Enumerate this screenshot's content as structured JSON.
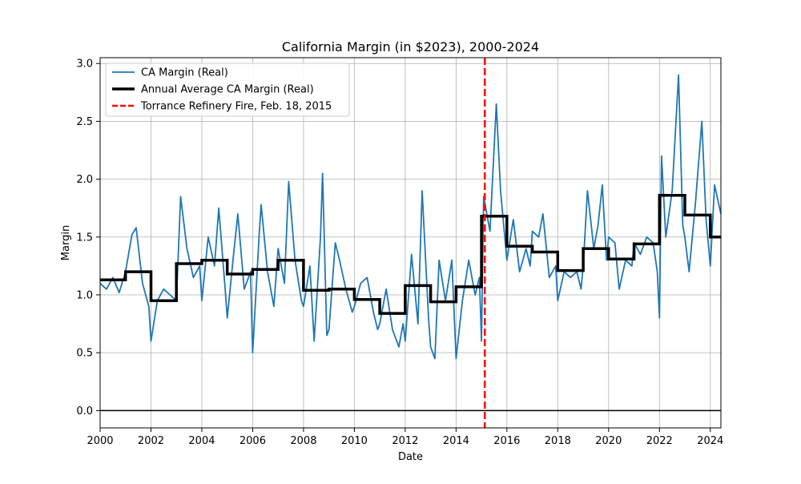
{
  "chart_data": {
    "type": "line",
    "title": "California Margin (in $2023), 2000-2024",
    "xlabel": "Date",
    "ylabel": "Margin",
    "xlim": [
      "2000-01-01",
      "2024-06-01"
    ],
    "ylim": [
      -0.15,
      3.05
    ],
    "x_ticks": [
      "2000",
      "2002",
      "2004",
      "2006",
      "2008",
      "2010",
      "2012",
      "2014",
      "2016",
      "2018",
      "2020",
      "2022",
      "2024"
    ],
    "y_ticks": [
      "0.0",
      "0.5",
      "1.0",
      "1.5",
      "2.0",
      "2.5",
      "3.0"
    ],
    "grid": true,
    "legend_position": "upper-left",
    "zero_line": 0.0,
    "series": [
      {
        "name": "CA Margin (Real)",
        "color": "#1f77b4",
        "style": "line",
        "points": [
          [
            "2000-01-01",
            1.1
          ],
          [
            "2000-04-01",
            1.05
          ],
          [
            "2000-07-01",
            1.15
          ],
          [
            "2000-10-01",
            1.02
          ],
          [
            "2001-01-01",
            1.2
          ],
          [
            "2001-04-01",
            1.52
          ],
          [
            "2001-06-01",
            1.58
          ],
          [
            "2001-09-01",
            1.1
          ],
          [
            "2001-12-01",
            0.9
          ],
          [
            "2002-01-01",
            0.6
          ],
          [
            "2002-04-01",
            0.95
          ],
          [
            "2002-07-01",
            1.05
          ],
          [
            "2002-10-01",
            1.0
          ],
          [
            "2003-01-01",
            0.95
          ],
          [
            "2003-03-01",
            1.85
          ],
          [
            "2003-06-01",
            1.4
          ],
          [
            "2003-09-01",
            1.15
          ],
          [
            "2003-12-01",
            1.25
          ],
          [
            "2004-01-01",
            0.95
          ],
          [
            "2004-04-01",
            1.5
          ],
          [
            "2004-07-01",
            1.25
          ],
          [
            "2004-09-01",
            1.75
          ],
          [
            "2004-12-01",
            1.05
          ],
          [
            "2005-01-01",
            0.8
          ],
          [
            "2005-04-01",
            1.35
          ],
          [
            "2005-06-01",
            1.7
          ],
          [
            "2005-09-01",
            1.05
          ],
          [
            "2005-12-01",
            1.2
          ],
          [
            "2006-01-01",
            0.5
          ],
          [
            "2006-04-01",
            1.5
          ],
          [
            "2006-05-01",
            1.78
          ],
          [
            "2006-08-01",
            1.2
          ],
          [
            "2006-11-01",
            0.9
          ],
          [
            "2007-01-01",
            1.4
          ],
          [
            "2007-04-01",
            1.1
          ],
          [
            "2007-06-01",
            1.98
          ],
          [
            "2007-09-01",
            1.3
          ],
          [
            "2007-12-01",
            0.95
          ],
          [
            "2008-01-01",
            0.9
          ],
          [
            "2008-04-01",
            1.25
          ],
          [
            "2008-06-01",
            0.6
          ],
          [
            "2008-09-01",
            1.5
          ],
          [
            "2008-10-01",
            2.05
          ],
          [
            "2008-12-01",
            0.65
          ],
          [
            "2009-01-01",
            0.7
          ],
          [
            "2009-04-01",
            1.45
          ],
          [
            "2009-06-01",
            1.3
          ],
          [
            "2009-09-01",
            1.05
          ],
          [
            "2009-12-01",
            0.85
          ],
          [
            "2010-01-01",
            0.9
          ],
          [
            "2010-04-01",
            1.1
          ],
          [
            "2010-07-01",
            1.15
          ],
          [
            "2010-10-01",
            0.85
          ],
          [
            "2010-12-01",
            0.7
          ],
          [
            "2011-01-01",
            0.75
          ],
          [
            "2011-04-01",
            1.05
          ],
          [
            "2011-07-01",
            0.7
          ],
          [
            "2011-10-01",
            0.55
          ],
          [
            "2011-12-01",
            0.75
          ],
          [
            "2012-01-01",
            0.6
          ],
          [
            "2012-04-01",
            1.35
          ],
          [
            "2012-07-01",
            0.75
          ],
          [
            "2012-09-01",
            1.9
          ],
          [
            "2012-12-01",
            0.8
          ],
          [
            "2013-01-01",
            0.55
          ],
          [
            "2013-03-01",
            0.45
          ],
          [
            "2013-05-01",
            1.3
          ],
          [
            "2013-08-01",
            0.95
          ],
          [
            "2013-11-01",
            1.3
          ],
          [
            "2014-01-01",
            0.45
          ],
          [
            "2014-04-01",
            0.95
          ],
          [
            "2014-07-01",
            1.3
          ],
          [
            "2014-10-01",
            1.0
          ],
          [
            "2014-12-01",
            1.15
          ],
          [
            "2015-01-01",
            0.6
          ],
          [
            "2015-02-01",
            1.85
          ],
          [
            "2015-05-01",
            1.55
          ],
          [
            "2015-08-01",
            2.65
          ],
          [
            "2015-10-01",
            1.9
          ],
          [
            "2015-12-01",
            1.5
          ],
          [
            "2016-01-01",
            1.3
          ],
          [
            "2016-04-01",
            1.65
          ],
          [
            "2016-07-01",
            1.2
          ],
          [
            "2016-10-01",
            1.4
          ],
          [
            "2016-12-01",
            1.25
          ],
          [
            "2017-01-01",
            1.55
          ],
          [
            "2017-04-01",
            1.5
          ],
          [
            "2017-06-01",
            1.7
          ],
          [
            "2017-09-01",
            1.15
          ],
          [
            "2017-12-01",
            1.25
          ],
          [
            "2018-01-01",
            0.95
          ],
          [
            "2018-04-01",
            1.2
          ],
          [
            "2018-07-01",
            1.15
          ],
          [
            "2018-10-01",
            1.2
          ],
          [
            "2018-12-01",
            1.05
          ],
          [
            "2019-01-01",
            1.25
          ],
          [
            "2019-03-01",
            1.9
          ],
          [
            "2019-06-01",
            1.4
          ],
          [
            "2019-08-01",
            1.6
          ],
          [
            "2019-10-01",
            1.95
          ],
          [
            "2019-12-01",
            1.3
          ],
          [
            "2020-01-01",
            1.5
          ],
          [
            "2020-04-01",
            1.45
          ],
          [
            "2020-06-01",
            1.05
          ],
          [
            "2020-09-01",
            1.3
          ],
          [
            "2020-12-01",
            1.25
          ],
          [
            "2021-01-01",
            1.45
          ],
          [
            "2021-04-01",
            1.35
          ],
          [
            "2021-07-01",
            1.5
          ],
          [
            "2021-10-01",
            1.45
          ],
          [
            "2021-12-01",
            1.2
          ],
          [
            "2022-01-01",
            0.8
          ],
          [
            "2022-02-01",
            2.2
          ],
          [
            "2022-04-01",
            1.5
          ],
          [
            "2022-07-01",
            1.9
          ],
          [
            "2022-10-01",
            2.9
          ],
          [
            "2022-12-01",
            1.6
          ],
          [
            "2023-01-01",
            1.5
          ],
          [
            "2023-03-01",
            1.2
          ],
          [
            "2023-06-01",
            1.8
          ],
          [
            "2023-09-01",
            2.5
          ],
          [
            "2023-11-01",
            1.65
          ],
          [
            "2024-01-01",
            1.25
          ],
          [
            "2024-03-01",
            1.95
          ],
          [
            "2024-06-01",
            1.7
          ]
        ]
      },
      {
        "name": "Annual Average CA Margin (Real)",
        "color": "#000000",
        "style": "step",
        "years": [
          2000,
          2001,
          2002,
          2003,
          2004,
          2005,
          2006,
          2007,
          2008,
          2009,
          2010,
          2011,
          2012,
          2013,
          2014,
          2015,
          2016,
          2017,
          2018,
          2019,
          2020,
          2021,
          2022,
          2023,
          2024
        ],
        "values": [
          1.13,
          1.2,
          0.95,
          1.27,
          1.3,
          1.18,
          1.22,
          1.3,
          1.04,
          1.05,
          0.96,
          0.84,
          1.08,
          0.94,
          1.07,
          1.68,
          1.42,
          1.37,
          1.21,
          1.4,
          1.31,
          1.44,
          1.86,
          1.69,
          1.5
        ]
      },
      {
        "name": "Torrance Refinery Fire, Feb. 18, 2015",
        "color": "#ff0000",
        "style": "vline",
        "x": "2015-02-18"
      }
    ]
  }
}
